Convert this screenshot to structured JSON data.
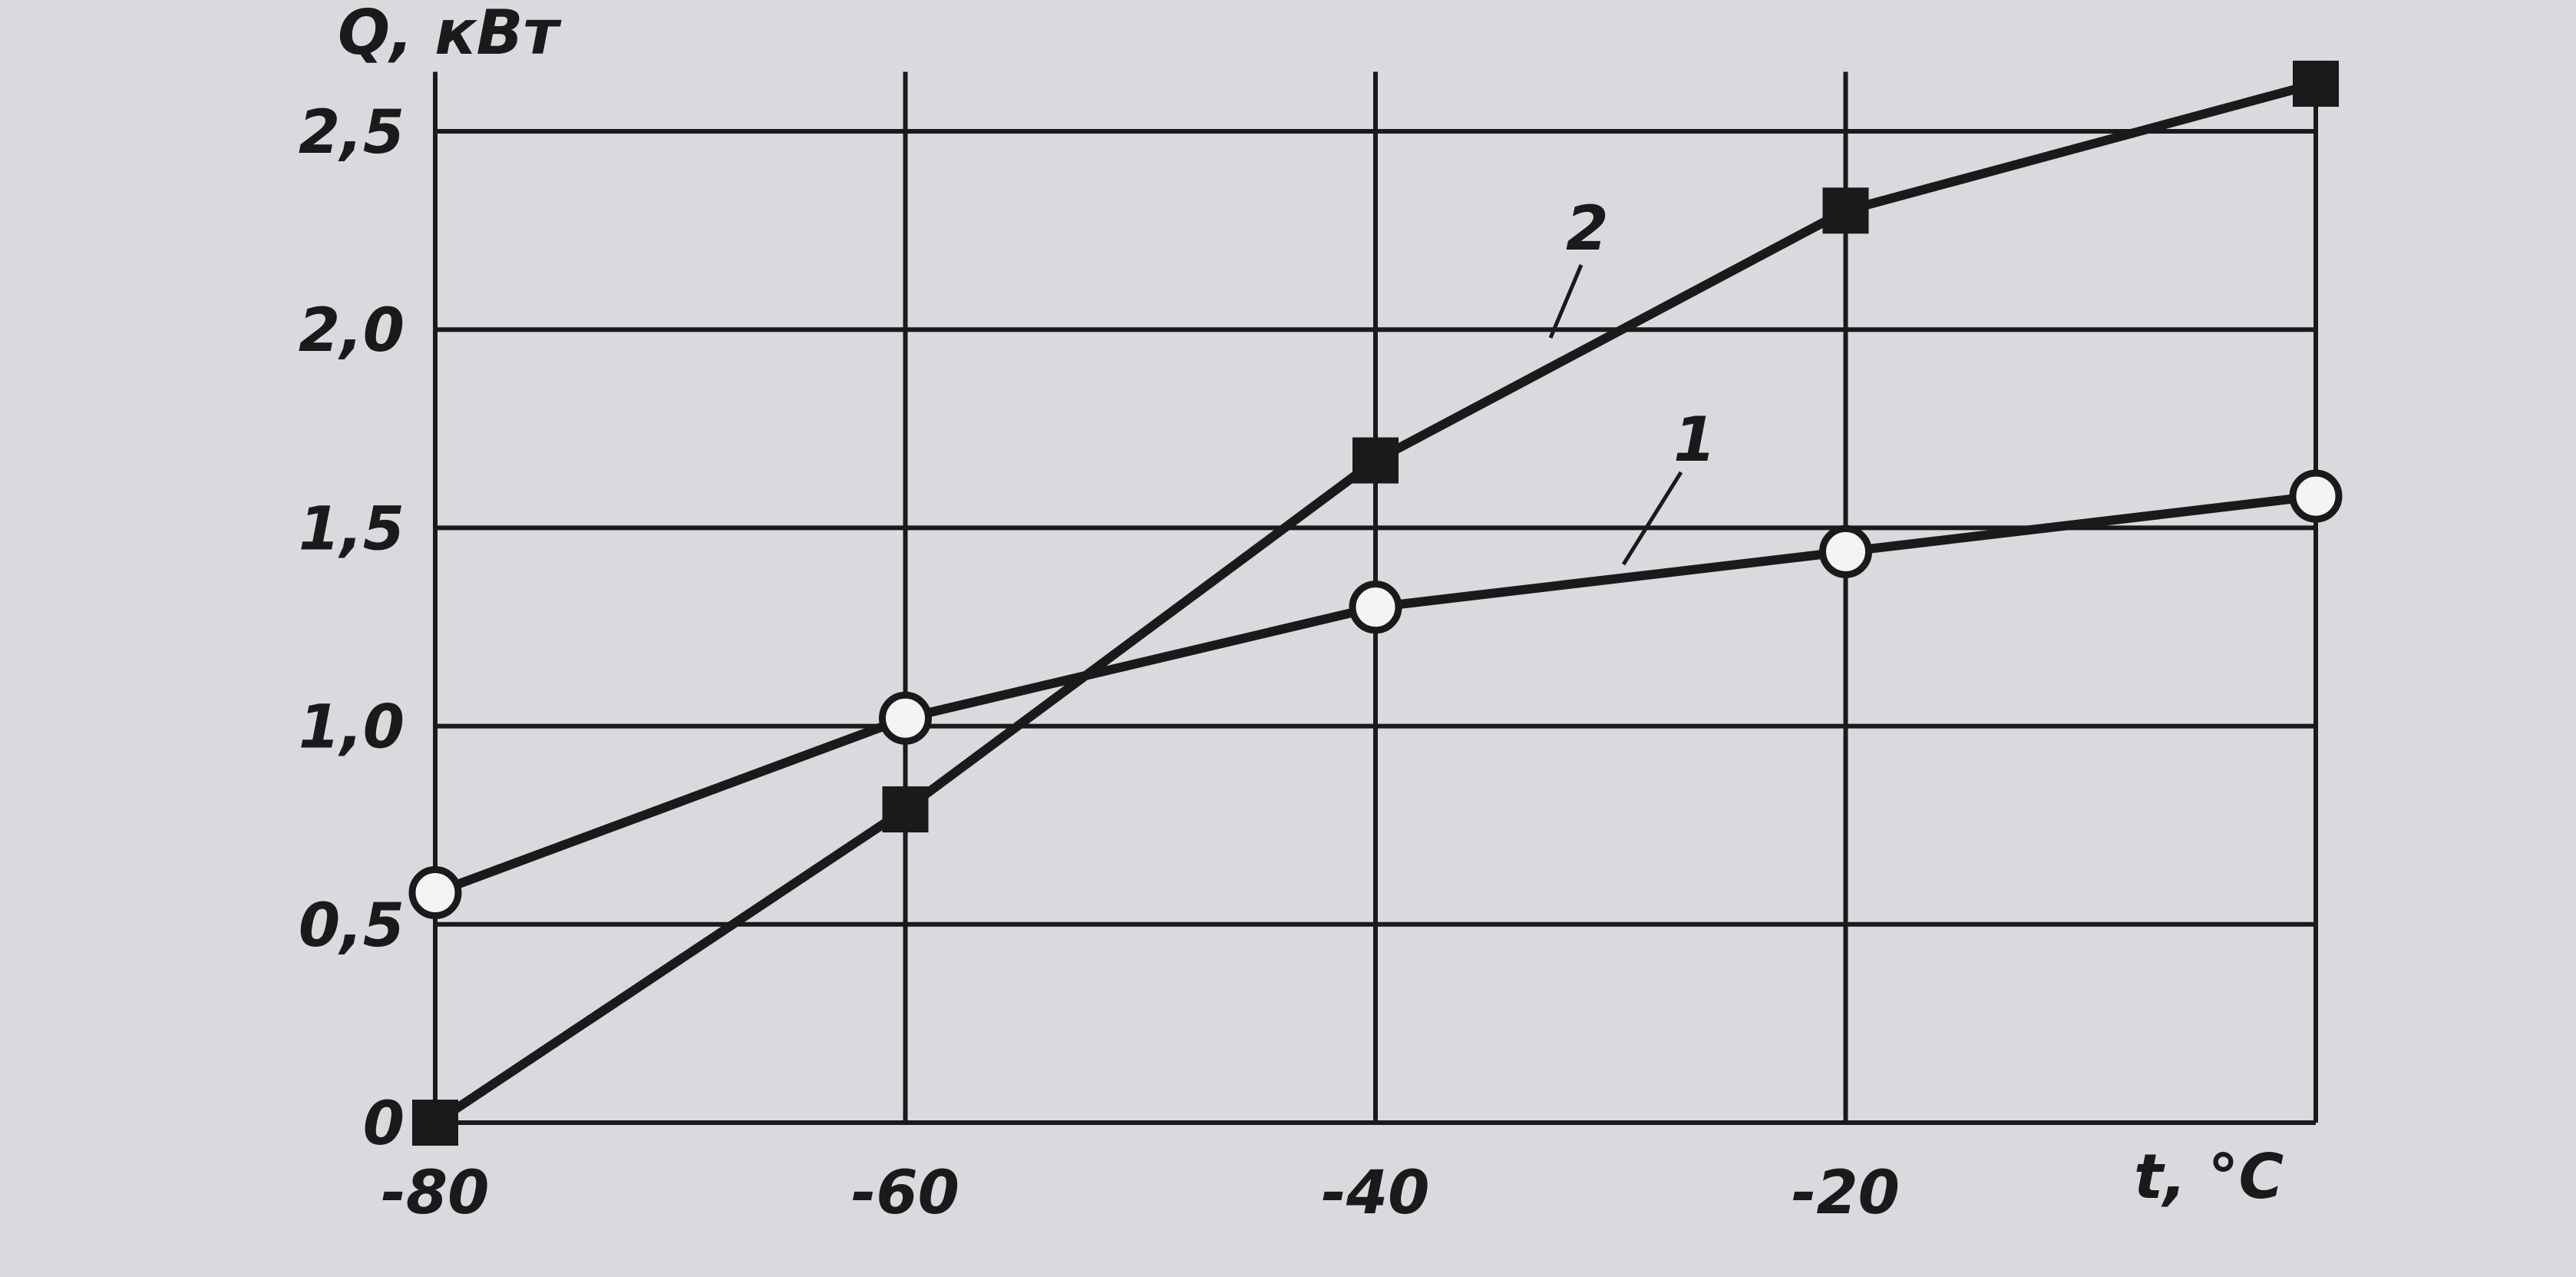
{
  "chart_data": {
    "type": "line",
    "title": "",
    "xlabel": "t, °C",
    "ylabel": "Q, кВт",
    "xlim": [
      -80,
      0
    ],
    "ylim": [
      0,
      2.65
    ],
    "x_ticks": [
      -80,
      -60,
      -40,
      -20
    ],
    "x_tick_labels": [
      "-80",
      "-60",
      "-40",
      "-20"
    ],
    "y_ticks": [
      0,
      0.5,
      1.0,
      1.5,
      2.0,
      2.5
    ],
    "y_tick_labels": [
      "0",
      "0,5",
      "1,0",
      "1,5",
      "2,0",
      "2,5"
    ],
    "grid": true,
    "x": [
      -80,
      -60,
      -40,
      -20,
      0
    ],
    "series": [
      {
        "name": "1",
        "marker": "open-circle",
        "values": [
          0.58,
          1.02,
          1.3,
          1.44,
          1.58
        ]
      },
      {
        "name": "2",
        "marker": "filled-square",
        "values": [
          0.0,
          0.79,
          1.67,
          2.3,
          2.62
        ]
      }
    ],
    "colors": {
      "background": "#d9d9de",
      "ink": "#1a1a1a"
    }
  }
}
